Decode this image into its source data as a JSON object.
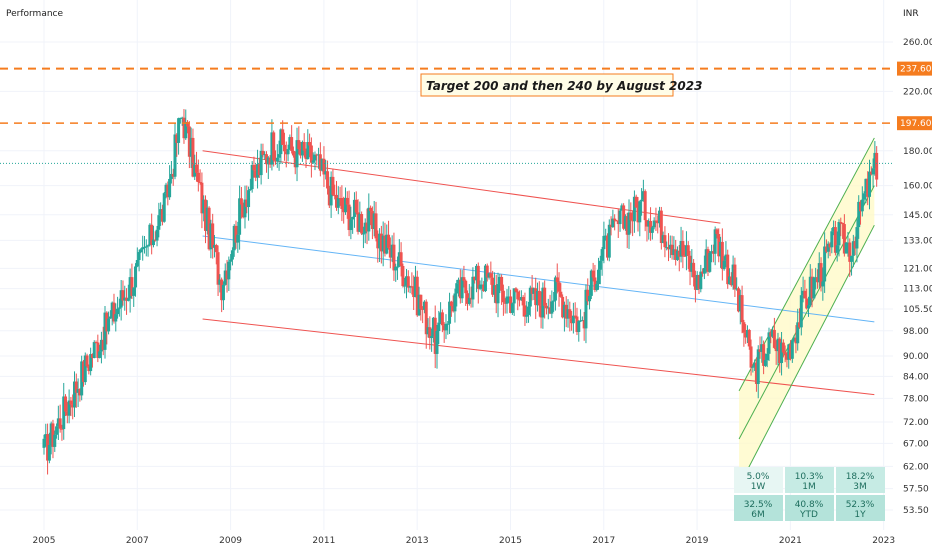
{
  "header": {
    "left_label": "Performance",
    "currency": "INR"
  },
  "annotation": "Target 200 and then 240 by August 2023",
  "price_tags": [
    {
      "label": "237.60",
      "value": 237.6,
      "color": "#f57c1f"
    },
    {
      "label": "197.60",
      "value": 197.6,
      "color": "#f57c1f"
    }
  ],
  "colors": {
    "up": "#26a69a",
    "down": "#ef5350",
    "channel_down": "#ef5350",
    "channel_mid": "#64b5f6",
    "channel_up": "#4caf50",
    "channel_fill": "#fff9c4",
    "target": "#f57c1f"
  },
  "performance": [
    {
      "value": "5.0%",
      "period": "1W"
    },
    {
      "value": "10.3%",
      "period": "1M"
    },
    {
      "value": "18.2%",
      "period": "3M"
    },
    {
      "value": "32.5%",
      "period": "6M"
    },
    {
      "value": "40.8%",
      "period": "YTD"
    },
    {
      "value": "52.3%",
      "period": "1Y"
    }
  ],
  "chart_data": {
    "type": "candlestick",
    "y_scale": "log",
    "ylim": [
      50,
      280
    ],
    "xlim": [
      2004.7,
      2023.2
    ],
    "y_ticks": [
      "260.00",
      "237.60",
      "220.00",
      "197.60",
      "180.00",
      "160.00",
      "145.00",
      "133.00",
      "121.00",
      "113.00",
      "105.50",
      "98.00",
      "90.00",
      "84.00",
      "78.00",
      "72.00",
      "67.00",
      "62.00",
      "57.50",
      "53.50"
    ],
    "y_tick_values": [
      260,
      237.6,
      220,
      197.6,
      180,
      160,
      145,
      133,
      121,
      113,
      105.5,
      98,
      90,
      84,
      78,
      72,
      67,
      62,
      57.5,
      53.5
    ],
    "x_ticks": [
      "2005",
      "2007",
      "2009",
      "2011",
      "2013",
      "2015",
      "2017",
      "2019",
      "2021",
      "2023"
    ],
    "x_tick_values": [
      2005,
      2007,
      2009,
      2011,
      2013,
      2015,
      2017,
      2019,
      2021,
      2023
    ],
    "current_price": 172.5,
    "target_levels": [
      237.6,
      197.6
    ],
    "channels": [
      {
        "name": "Descending channel upper",
        "from": [
          2008.4,
          180
        ],
        "to": [
          2019.5,
          141
        ]
      },
      {
        "name": "Descending channel lower",
        "from": [
          2008.4,
          102
        ],
        "to": [
          2022.8,
          79
        ]
      },
      {
        "name": "Descending channel middle",
        "from": [
          2008.4,
          135
        ],
        "to": [
          2022.8,
          101
        ]
      },
      {
        "name": "Ascending channel upper",
        "from": [
          2019.9,
          80
        ],
        "to": [
          2022.8,
          188
        ]
      },
      {
        "name": "Ascending channel middle",
        "from": [
          2019.9,
          68
        ],
        "to": [
          2022.8,
          160
        ]
      },
      {
        "name": "Ascending channel lower",
        "from": [
          2019.9,
          58
        ],
        "to": [
          2022.8,
          140
        ]
      }
    ],
    "key_points": [
      {
        "t": 2005.0,
        "price": 65
      },
      {
        "t": 2006.0,
        "price": 90
      },
      {
        "t": 2007.0,
        "price": 120
      },
      {
        "t": 2007.6,
        "price": 150
      },
      {
        "t": 2007.95,
        "price": 205
      },
      {
        "t": 2008.4,
        "price": 150
      },
      {
        "t": 2008.8,
        "price": 115
      },
      {
        "t": 2009.3,
        "price": 155
      },
      {
        "t": 2009.9,
        "price": 185
      },
      {
        "t": 2010.8,
        "price": 175
      },
      {
        "t": 2011.3,
        "price": 150
      },
      {
        "t": 2012.0,
        "price": 140
      },
      {
        "t": 2012.8,
        "price": 118
      },
      {
        "t": 2013.4,
        "price": 95
      },
      {
        "t": 2013.8,
        "price": 110
      },
      {
        "t": 2014.4,
        "price": 118
      },
      {
        "t": 2014.9,
        "price": 110
      },
      {
        "t": 2015.6,
        "price": 108
      },
      {
        "t": 2016.0,
        "price": 112
      },
      {
        "t": 2016.5,
        "price": 100
      },
      {
        "t": 2016.9,
        "price": 125
      },
      {
        "t": 2017.3,
        "price": 140
      },
      {
        "t": 2017.8,
        "price": 150
      },
      {
        "t": 2018.3,
        "price": 138
      },
      {
        "t": 2018.8,
        "price": 125
      },
      {
        "t": 2019.0,
        "price": 115
      },
      {
        "t": 2019.4,
        "price": 135
      },
      {
        "t": 2019.8,
        "price": 115
      },
      {
        "t": 2020.2,
        "price": 85
      },
      {
        "t": 2020.6,
        "price": 95
      },
      {
        "t": 2020.9,
        "price": 90
      },
      {
        "t": 2021.3,
        "price": 108
      },
      {
        "t": 2021.7,
        "price": 122
      },
      {
        "t": 2022.0,
        "price": 135
      },
      {
        "t": 2022.3,
        "price": 130
      },
      {
        "t": 2022.6,
        "price": 155
      },
      {
        "t": 2022.85,
        "price": 172
      }
    ]
  }
}
